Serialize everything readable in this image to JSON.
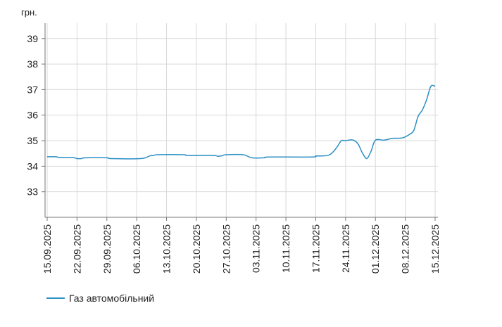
{
  "chart_data": {
    "type": "line",
    "unit_label": "грн.",
    "ylim": [
      32,
      39.6
    ],
    "y_ticks": [
      33,
      34,
      35,
      36,
      37,
      38,
      39
    ],
    "grid": true,
    "legend_position": "bottom-left",
    "x_tick_labels": [
      "15.09.2025",
      "22.09.2025",
      "29.09.2025",
      "06.10.2025",
      "13.10.2025",
      "20.10.2025",
      "27.10.2025",
      "03.11.2025",
      "10.11.2025",
      "17.11.2025",
      "24.11.2025",
      "01.12.2025",
      "08.12.2025",
      "15.12.2025"
    ],
    "series": [
      {
        "name": "Газ автомобільний",
        "color": "#2c8fc4",
        "points": [
          [
            "15.09.2025",
            34.37
          ],
          [
            "17.09.2025",
            34.37
          ],
          [
            "18.09.2025",
            34.34
          ],
          [
            "21.09.2025",
            34.34
          ],
          [
            "22.09.2025",
            34.3
          ],
          [
            "23.09.2025",
            34.3
          ],
          [
            "24.09.2025",
            34.33
          ],
          [
            "29.09.2025",
            34.33
          ],
          [
            "30.09.2025",
            34.3
          ],
          [
            "07.10.2025",
            34.3
          ],
          [
            "09.10.2025",
            34.4
          ],
          [
            "10.10.2025",
            34.42
          ],
          [
            "11.10.2025",
            34.45
          ],
          [
            "17.10.2025",
            34.45
          ],
          [
            "18.10.2025",
            34.42
          ],
          [
            "24.10.2025",
            34.42
          ],
          [
            "25.10.2025",
            34.39
          ],
          [
            "26.10.2025",
            34.41
          ],
          [
            "27.10.2025",
            34.45
          ],
          [
            "31.10.2025",
            34.45
          ],
          [
            "02.11.2025",
            34.33
          ],
          [
            "05.11.2025",
            34.33
          ],
          [
            "06.11.2025",
            34.36
          ],
          [
            "16.11.2025",
            34.36
          ],
          [
            "17.11.2025",
            34.4
          ],
          [
            "18.11.2025",
            34.4
          ],
          [
            "20.11.2025",
            34.43
          ],
          [
            "21.11.2025",
            34.55
          ],
          [
            "22.11.2025",
            34.75
          ],
          [
            "23.11.2025",
            35.0
          ],
          [
            "24.11.2025",
            35.0
          ],
          [
            "25.11.2025",
            35.03
          ],
          [
            "26.11.2025",
            35.01
          ],
          [
            "27.11.2025",
            34.85
          ],
          [
            "28.11.2025",
            34.5
          ],
          [
            "29.11.2025",
            34.3
          ],
          [
            "30.11.2025",
            34.6
          ],
          [
            "01.12.2025",
            35.02
          ],
          [
            "03.12.2025",
            35.02
          ],
          [
            "05.12.2025",
            35.09
          ],
          [
            "07.12.2025",
            35.1
          ],
          [
            "08.12.2025",
            35.15
          ],
          [
            "09.12.2025",
            35.25
          ],
          [
            "10.12.2025",
            35.4
          ],
          [
            "11.12.2025",
            35.95
          ],
          [
            "12.12.2025",
            36.2
          ],
          [
            "13.12.2025",
            36.6
          ],
          [
            "14.12.2025",
            37.13
          ],
          [
            "15.12.2025",
            37.13
          ]
        ]
      }
    ]
  }
}
